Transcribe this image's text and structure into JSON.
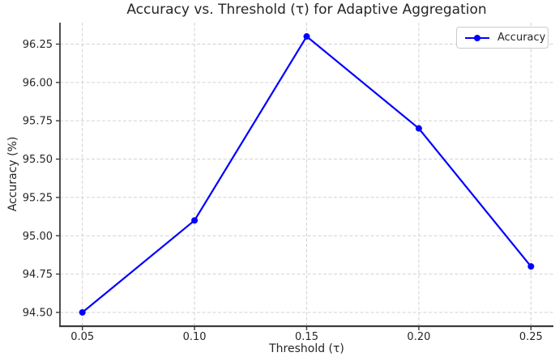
{
  "chart_data": {
    "type": "line",
    "title": "Accuracy vs. Threshold (τ) for Adaptive Aggregation",
    "xlabel": "Threshold (τ)",
    "ylabel": "Accuracy (%)",
    "x": [
      0.05,
      0.1,
      0.15,
      0.2,
      0.25
    ],
    "series": [
      {
        "name": "Accuracy",
        "values": [
          94.5,
          95.1,
          96.3,
          95.7,
          94.8
        ],
        "color": "#0000ff",
        "marker": "circle"
      }
    ],
    "xlim": [
      0.04,
      0.26
    ],
    "ylim": [
      94.41,
      96.39
    ],
    "xticks": {
      "values": [
        0.05,
        0.1,
        0.15,
        0.2,
        0.25
      ],
      "labels": [
        "0.05",
        "0.10",
        "0.15",
        "0.20",
        "0.25"
      ]
    },
    "yticks": {
      "values": [
        94.5,
        94.75,
        95.0,
        95.25,
        95.5,
        95.75,
        96.0,
        96.25
      ],
      "labels": [
        "94.50",
        "94.75",
        "95.00",
        "95.25",
        "95.50",
        "95.75",
        "96.00",
        "96.25"
      ]
    },
    "grid": true,
    "legend": {
      "label": "Accuracy",
      "position": "upper right"
    },
    "colors": {
      "line": "#0000ff",
      "grid": "#d2d2d2",
      "spine": "#3b3b3b",
      "text": "#262626",
      "legend_border": "#cccccc",
      "background": "#ffffff"
    }
  }
}
